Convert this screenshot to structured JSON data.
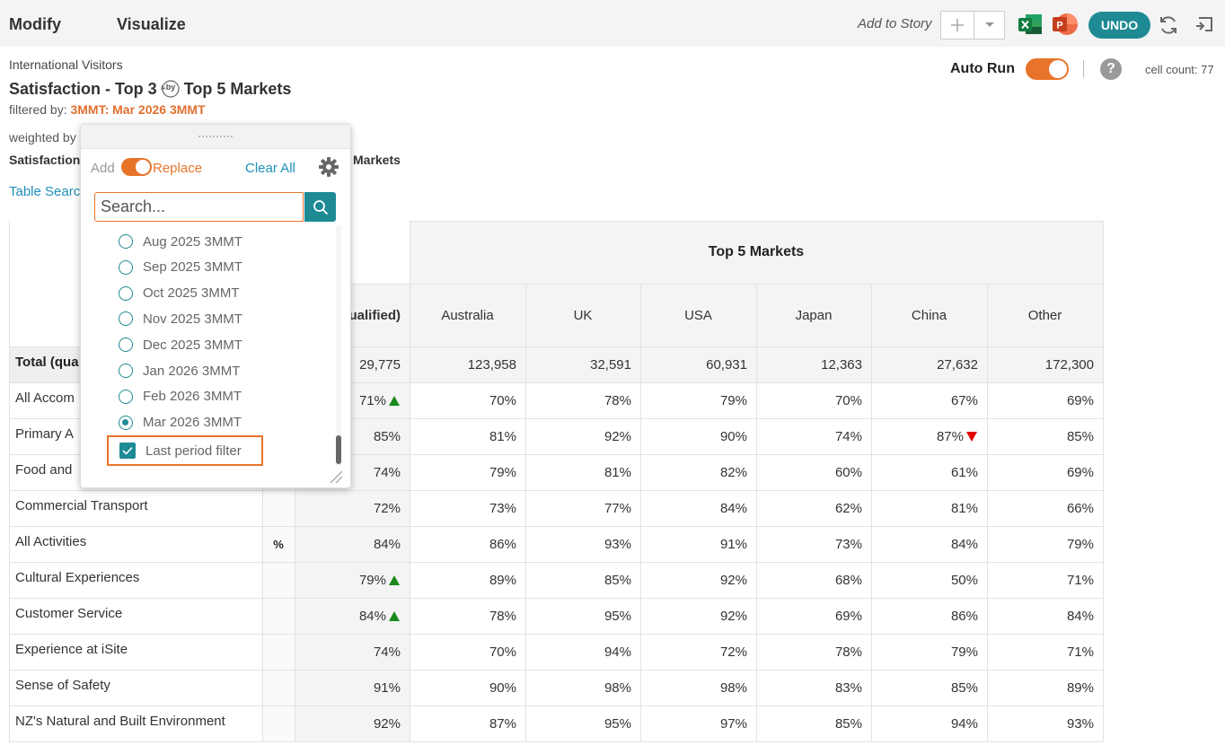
{
  "toolbar": {
    "tabs": [
      "Modify",
      "Visualize"
    ],
    "add_to_story": "Add to Story",
    "undo": "UNDO"
  },
  "header": {
    "source": "International Visitors",
    "title_left": "Satisfaction - Top 3",
    "by_badge": "by",
    "title_right": "Top 5 Markets",
    "filter_label": "filtered by:",
    "filter_value": "3MMT: Mar 2026 3MMT",
    "weighted_label": "weighted by",
    "sat_label": "Satisfaction",
    "markets_label": "Markets",
    "table_search": "Table Search"
  },
  "autorun": {
    "label": "Auto Run",
    "on": true
  },
  "cell_count": "cell count: 77",
  "popup": {
    "add_label": "Add",
    "replace_label": "Replace",
    "clear_all": "Clear All",
    "search_placeholder": "Search...",
    "options": [
      {
        "label": "Aug 2025 3MMT",
        "selected": false
      },
      {
        "label": "Sep 2025 3MMT",
        "selected": false
      },
      {
        "label": "Oct 2025 3MMT",
        "selected": false
      },
      {
        "label": "Nov 2025 3MMT",
        "selected": false
      },
      {
        "label": "Dec 2025 3MMT",
        "selected": false
      },
      {
        "label": "Jan 2026 3MMT",
        "selected": false
      },
      {
        "label": "Feb 2026 3MMT",
        "selected": false
      },
      {
        "label": "Mar 2026 3MMT",
        "selected": true
      }
    ],
    "last_period": {
      "label": "Last period filter",
      "checked": true
    }
  },
  "table": {
    "group_header": "Top 5 Markets",
    "col_headers": [
      "ualified)",
      "Australia",
      "UK",
      "USA",
      "Japan",
      "China",
      "Other"
    ],
    "unit_label": "%",
    "rows": [
      {
        "label": "Total (qua",
        "values": [
          "29,775",
          "123,958",
          "32,591",
          "60,931",
          "12,363",
          "27,632",
          "172,300"
        ],
        "total": true
      },
      {
        "label": "All Accom",
        "values": [
          "71%",
          "70%",
          "78%",
          "79%",
          "70%",
          "67%",
          "69%"
        ],
        "marks": {
          "0": "up"
        }
      },
      {
        "label": "Primary A",
        "values": [
          "85%",
          "81%",
          "92%",
          "90%",
          "74%",
          "87%",
          "85%"
        ],
        "marks": {
          "5": "down"
        }
      },
      {
        "label": "Food and",
        "values": [
          "74%",
          "79%",
          "81%",
          "82%",
          "60%",
          "61%",
          "69%"
        ]
      },
      {
        "label": "Commercial Transport",
        "values": [
          "72%",
          "73%",
          "77%",
          "84%",
          "62%",
          "81%",
          "66%"
        ]
      },
      {
        "label": "All Activities",
        "values": [
          "84%",
          "86%",
          "93%",
          "91%",
          "73%",
          "84%",
          "79%"
        ]
      },
      {
        "label": "Cultural Experiences",
        "values": [
          "79%",
          "89%",
          "85%",
          "92%",
          "68%",
          "50%",
          "71%"
        ],
        "marks": {
          "0": "up"
        }
      },
      {
        "label": "Customer Service",
        "values": [
          "84%",
          "78%",
          "95%",
          "92%",
          "69%",
          "86%",
          "84%"
        ],
        "marks": {
          "0": "up"
        }
      },
      {
        "label": "Experience at iSite",
        "values": [
          "74%",
          "70%",
          "94%",
          "72%",
          "78%",
          "79%",
          "71%"
        ]
      },
      {
        "label": "Sense of Safety",
        "values": [
          "91%",
          "90%",
          "98%",
          "98%",
          "83%",
          "85%",
          "89%"
        ]
      },
      {
        "label": "NZ's Natural and Built Environment",
        "values": [
          "92%",
          "87%",
          "95%",
          "97%",
          "85%",
          "94%",
          "93%"
        ]
      }
    ]
  },
  "colors": {
    "accent_orange": "#e8742a",
    "teal": "#1e8a94",
    "link_blue": "#1e8fb8",
    "up_green": "#1a8a1a",
    "down_red": "#e00000"
  },
  "icons": [
    "plus-icon",
    "chevron-down-icon",
    "excel-icon",
    "powerpoint-icon",
    "refresh-icon",
    "exit-icon",
    "help-icon",
    "gear-icon",
    "search-icon",
    "check-icon",
    "resize-icon"
  ]
}
